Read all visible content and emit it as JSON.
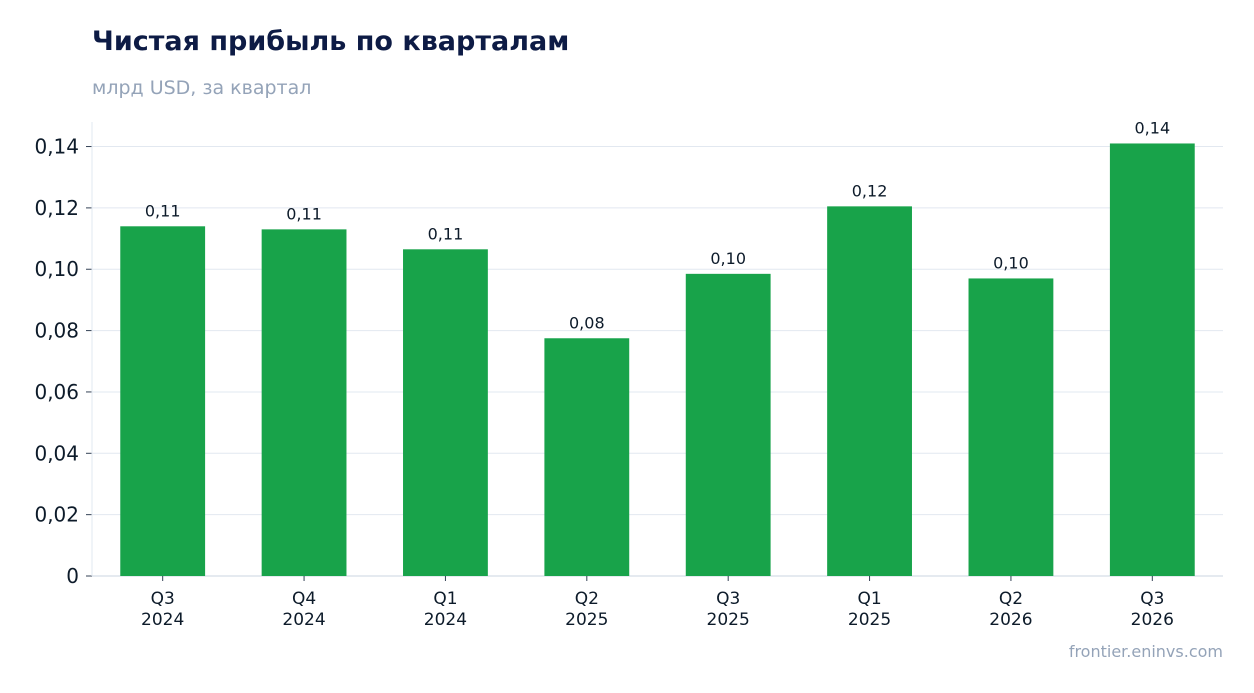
{
  "header": {
    "title": "Чистая прибыль по кварталам",
    "subtitle": "млрд USD, за квартал"
  },
  "footer": {
    "source": "frontier.eninvs.com"
  },
  "chart_data": {
    "type": "bar",
    "title": "Чистая прибыль по кварталам",
    "subtitle": "млрд USD, за квартал",
    "categories": [
      [
        "Q3",
        "2024"
      ],
      [
        "Q4",
        "2024"
      ],
      [
        "Q1",
        "2024"
      ],
      [
        "Q2",
        "2025"
      ],
      [
        "Q3",
        "2025"
      ],
      [
        "Q1",
        "2025"
      ],
      [
        "Q2",
        "2026"
      ],
      [
        "Q3",
        "2026"
      ]
    ],
    "values": [
      0.114,
      0.113,
      0.1065,
      0.0775,
      0.0985,
      0.1205,
      0.097,
      0.141
    ],
    "value_labels": [
      "0,11",
      "0,11",
      "0,11",
      "0,08",
      "0,10",
      "0,12",
      "0,10",
      "0,14"
    ],
    "yticks": [
      0,
      0.02,
      0.04,
      0.06,
      0.08,
      0.1,
      0.12,
      0.14
    ],
    "ytick_labels": [
      "0",
      "0,02",
      "0,04",
      "0,06",
      "0,08",
      "0,10",
      "0,12",
      "0,14"
    ],
    "ylim": [
      0,
      0.148
    ],
    "grid": true,
    "bar_color": "#18a34a",
    "grid_color": "#e2e8f0",
    "text_color": "#0d1b2a"
  }
}
